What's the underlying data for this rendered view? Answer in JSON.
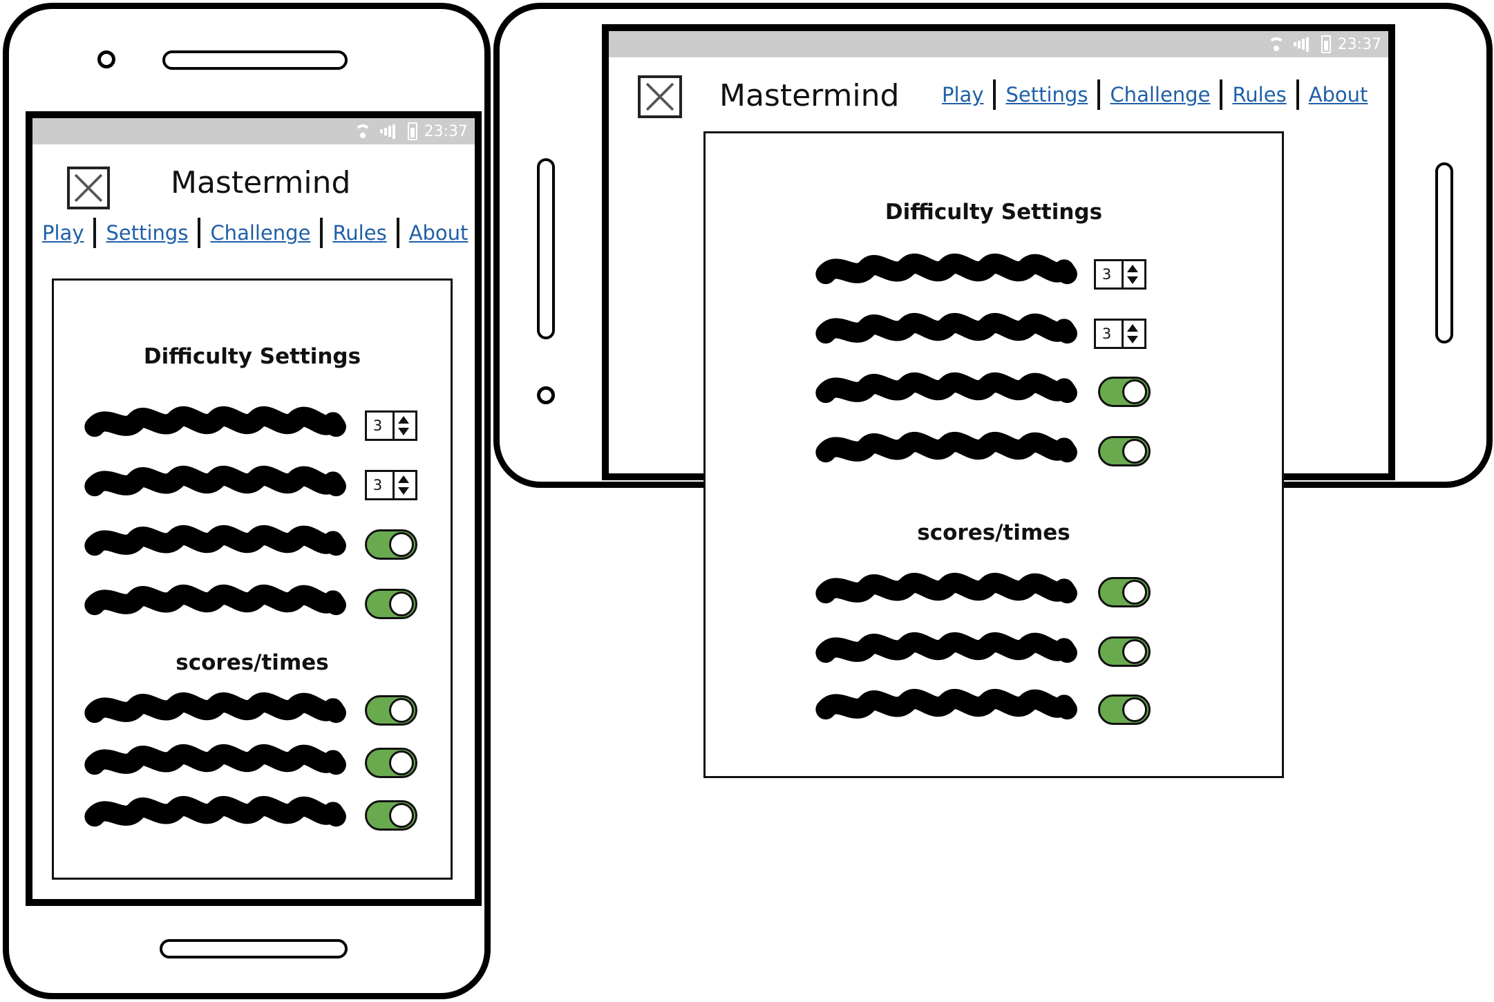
{
  "app": {
    "title": "Mastermind"
  },
  "status_bar": {
    "time": "23:37"
  },
  "nav": {
    "items": [
      {
        "label": "Play"
      },
      {
        "label": "Settings"
      },
      {
        "label": "Challenge"
      },
      {
        "label": "Rules"
      },
      {
        "label": "About"
      }
    ]
  },
  "settings": {
    "difficulty_title": "Difficulty Settings",
    "difficulty_rows": [
      {
        "control": "stepper",
        "value": "3"
      },
      {
        "control": "stepper",
        "value": "3"
      },
      {
        "control": "toggle",
        "state": "on"
      },
      {
        "control": "toggle",
        "state": "on"
      }
    ],
    "scores_title": "scores/times",
    "scores_rows": [
      {
        "control": "toggle",
        "state": "on"
      },
      {
        "control": "toggle",
        "state": "on"
      },
      {
        "control": "toggle",
        "state": "on"
      }
    ]
  },
  "colors": {
    "link": "#1f5fa8",
    "toggle_on": "#6aaa4f",
    "status_bar": "#cccccc"
  },
  "icons": [
    "placeholder-image-icon",
    "wifi-icon",
    "signal-icon",
    "battery-icon"
  ]
}
